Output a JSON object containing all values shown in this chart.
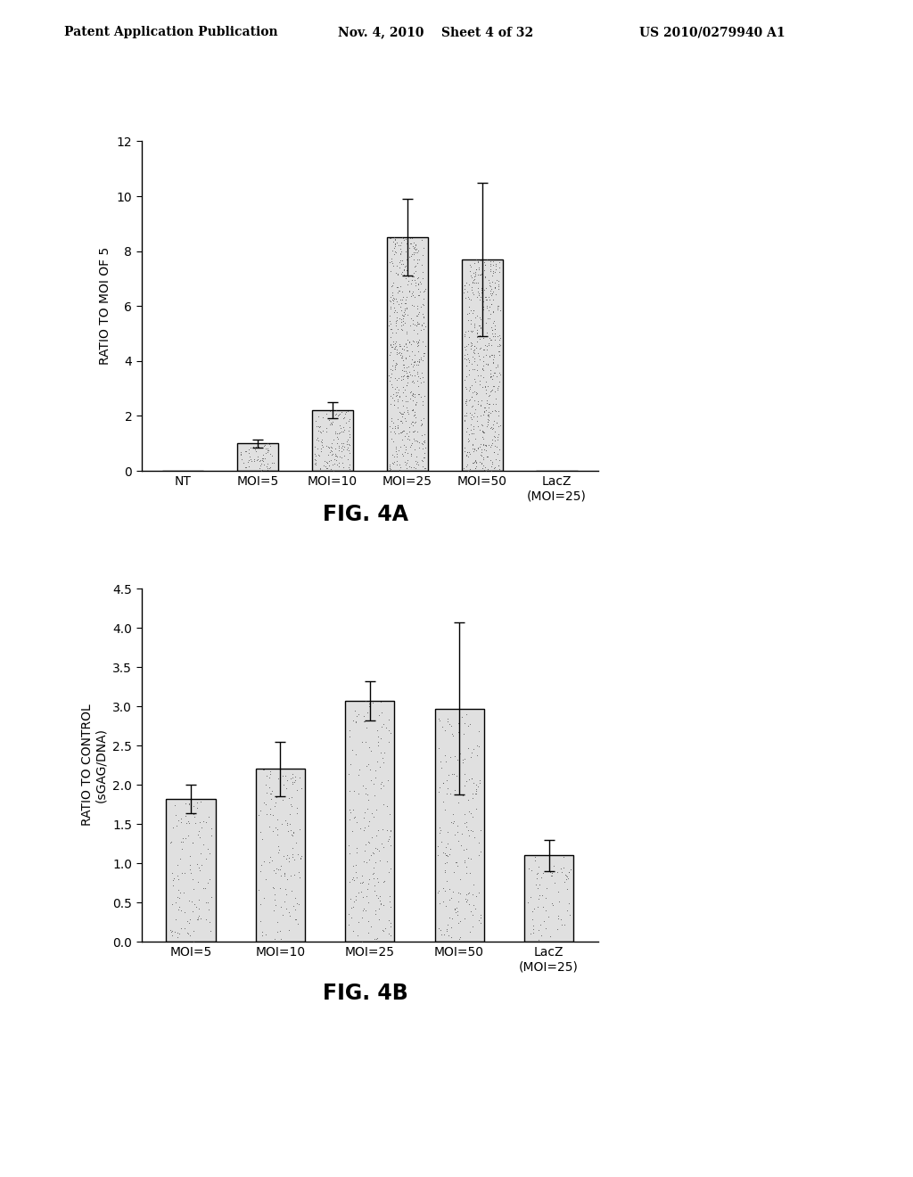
{
  "header_left": "Patent Application Publication",
  "header_mid": "Nov. 4, 2010    Sheet 4 of 32",
  "header_right": "US 2010/0279940 A1",
  "fig4a": {
    "categories": [
      "NT",
      "MOI=5",
      "MOI=10",
      "MOI=25",
      "MOI=50",
      "LacZ\n(MOI=25)"
    ],
    "values": [
      0.0,
      1.0,
      2.2,
      8.5,
      7.7,
      0.0
    ],
    "errors": [
      0.0,
      0.15,
      0.3,
      1.4,
      2.8,
      0.0
    ],
    "ylabel": "RATIO TO MOI OF 5",
    "ylim": [
      0,
      12
    ],
    "yticks": [
      0,
      2,
      4,
      6,
      8,
      10,
      12
    ],
    "fig_label": "FIG. 4A"
  },
  "fig4b": {
    "categories": [
      "MOI=5",
      "MOI=10",
      "MOI=25",
      "MOI=50",
      "LacZ\n(MOI=25)"
    ],
    "values": [
      1.82,
      2.2,
      3.07,
      2.97,
      1.1
    ],
    "errors": [
      0.18,
      0.35,
      0.25,
      1.1,
      0.2
    ],
    "ylabel": "RATIO TO CONTROL\n(sGAG/DNA)",
    "ylim": [
      0,
      4.5
    ],
    "yticks": [
      0,
      0.5,
      1.0,
      1.5,
      2.0,
      2.5,
      3.0,
      3.5,
      4.0,
      4.5
    ],
    "fig_label": "FIG. 4B"
  },
  "bar_color": "#e0e0e0",
  "bar_edgecolor": "#000000",
  "dot_color": "#444444",
  "background_color": "#ffffff"
}
